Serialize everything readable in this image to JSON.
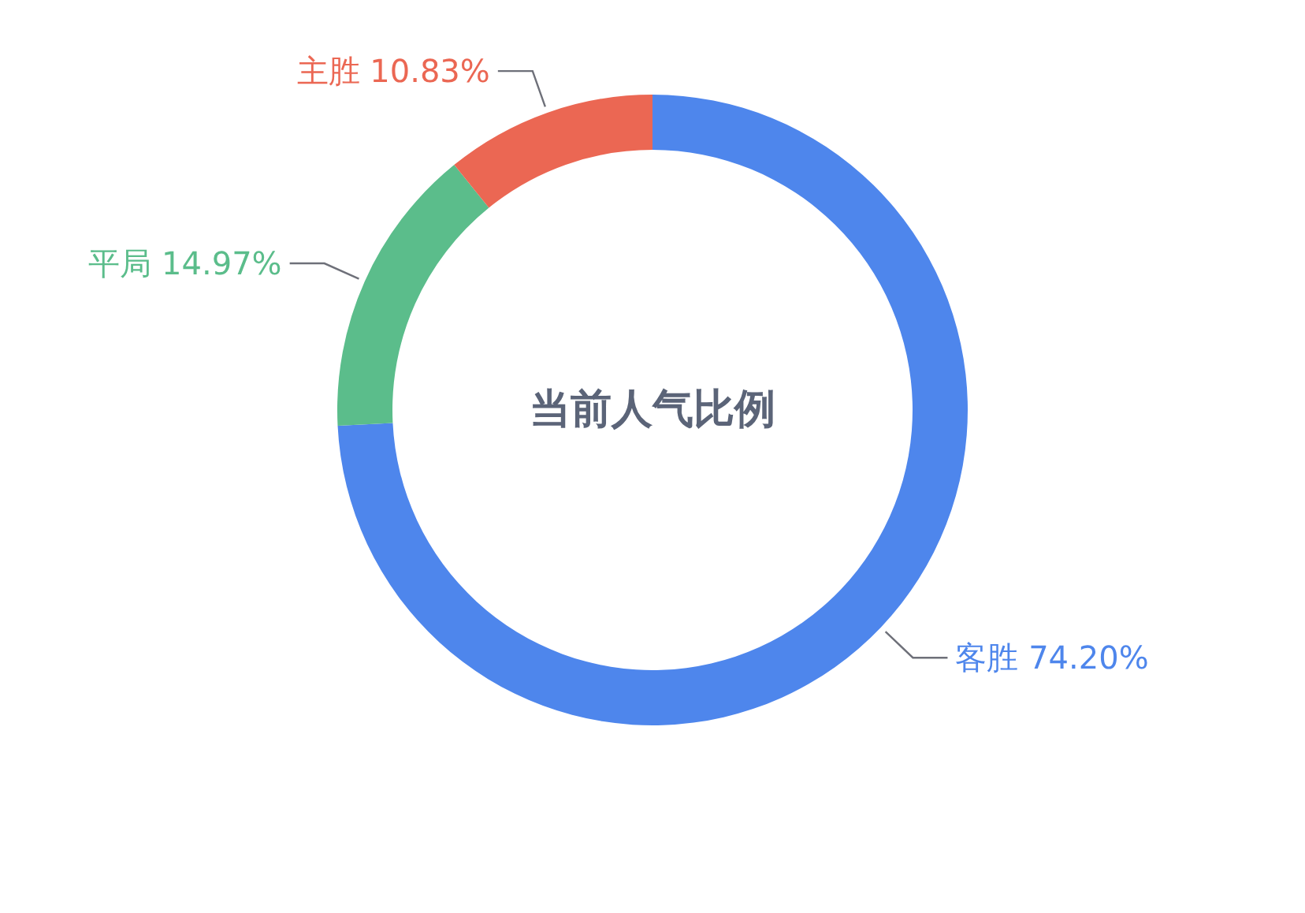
{
  "chart_data": {
    "type": "donut",
    "title": "当前人气比例",
    "categories": [
      "客胜",
      "平局",
      "主胜"
    ],
    "values": [
      74.2,
      14.97,
      10.83
    ],
    "value_labels": [
      "74.20%",
      "14.97%",
      "10.83%"
    ],
    "colors": [
      "#4e86ec",
      "#5bbd8b",
      "#eb6753"
    ]
  }
}
